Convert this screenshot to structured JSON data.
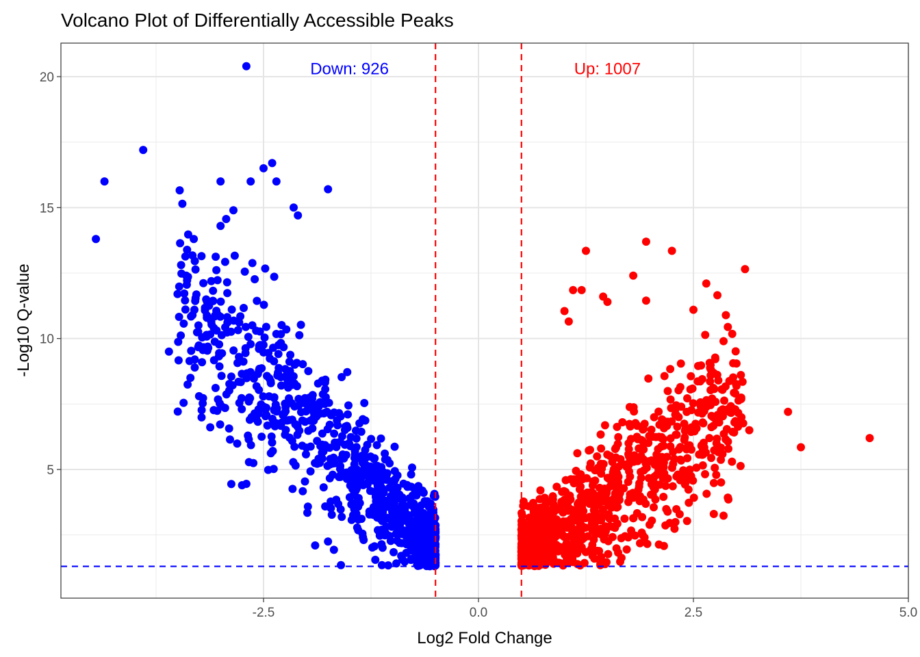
{
  "chart_data": {
    "type": "scatter",
    "title": "Volcano Plot of Differentially Accessible Peaks",
    "xlabel": "Log2 Fold Change",
    "ylabel": "-Log10 Q-value",
    "xlim": [
      -4.9,
      5.0
    ],
    "ylim": [
      0.1,
      21.3
    ],
    "x_ticks": [
      -2.5,
      0.0,
      2.5,
      5.0
    ],
    "x_tick_labels": [
      "-2.5",
      "0.0",
      "2.5",
      "5.0"
    ],
    "y_ticks": [
      5,
      10,
      15,
      20
    ],
    "y_tick_labels": [
      "5",
      "10",
      "15",
      "20"
    ],
    "grid": true,
    "theme": "bw",
    "thresholds": {
      "log2fc": [
        -0.5,
        0.5
      ],
      "neg_log10_q": 1.3,
      "vline_color": "#ff0000",
      "hline_color": "#0000ff"
    },
    "annotations": [
      {
        "text": "Down: 926",
        "x": -1.5,
        "y": 20.3,
        "color": "#0000ff"
      },
      {
        "text": "Up: 1007",
        "x": 1.5,
        "y": 20.3,
        "color": "#ff0000"
      }
    ],
    "series": [
      {
        "name": "Down",
        "color": "#0000ff",
        "count": 926,
        "x_range": [
          -4.5,
          -0.5
        ],
        "y_range": [
          1.3,
          20.4
        ],
        "highlighted_points": [
          [
            -2.7,
            20.4
          ],
          [
            -3.9,
            17.2
          ],
          [
            -4.35,
            16.0
          ],
          [
            -4.45,
            13.8
          ],
          [
            -2.4,
            16.7
          ],
          [
            -2.5,
            16.5
          ],
          [
            -2.65,
            16.0
          ],
          [
            -3.0,
            16.0
          ],
          [
            -2.35,
            16.0
          ],
          [
            -1.75,
            15.7
          ],
          [
            -2.15,
            15.0
          ],
          [
            -2.85,
            14.9
          ],
          [
            -3.0,
            14.3
          ],
          [
            -2.1,
            14.7
          ],
          [
            -3.4,
            12.4
          ],
          [
            -3.6,
            9.5
          ],
          [
            -3.5,
            11.7
          ],
          [
            -3.3,
            9.2
          ],
          [
            -3.35,
            8.5
          ],
          [
            -3.25,
            7.8
          ],
          [
            -2.75,
            4.4
          ],
          [
            -2.7,
            4.45
          ],
          [
            -1.9,
            2.1
          ],
          [
            -1.75,
            2.25
          ],
          [
            -1.2,
            1.55
          ]
        ]
      },
      {
        "name": "Up",
        "color": "#ff0000",
        "count": 1007,
        "x_range": [
          0.5,
          4.6
        ],
        "y_range": [
          1.3,
          13.7
        ],
        "highlighted_points": [
          [
            1.95,
            13.7
          ],
          [
            1.25,
            13.35
          ],
          [
            2.25,
            13.35
          ],
          [
            3.1,
            12.65
          ],
          [
            1.8,
            12.4
          ],
          [
            2.65,
            12.1
          ],
          [
            1.1,
            11.85
          ],
          [
            1.2,
            11.85
          ],
          [
            1.45,
            11.6
          ],
          [
            1.5,
            11.4
          ],
          [
            1.95,
            11.45
          ],
          [
            1.0,
            11.05
          ],
          [
            1.05,
            10.65
          ],
          [
            2.5,
            11.1
          ],
          [
            2.85,
            9.9
          ],
          [
            3.6,
            7.2
          ],
          [
            4.55,
            6.2
          ],
          [
            3.75,
            5.85
          ],
          [
            3.15,
            6.5
          ],
          [
            2.9,
            7.3
          ]
        ]
      }
    ]
  }
}
